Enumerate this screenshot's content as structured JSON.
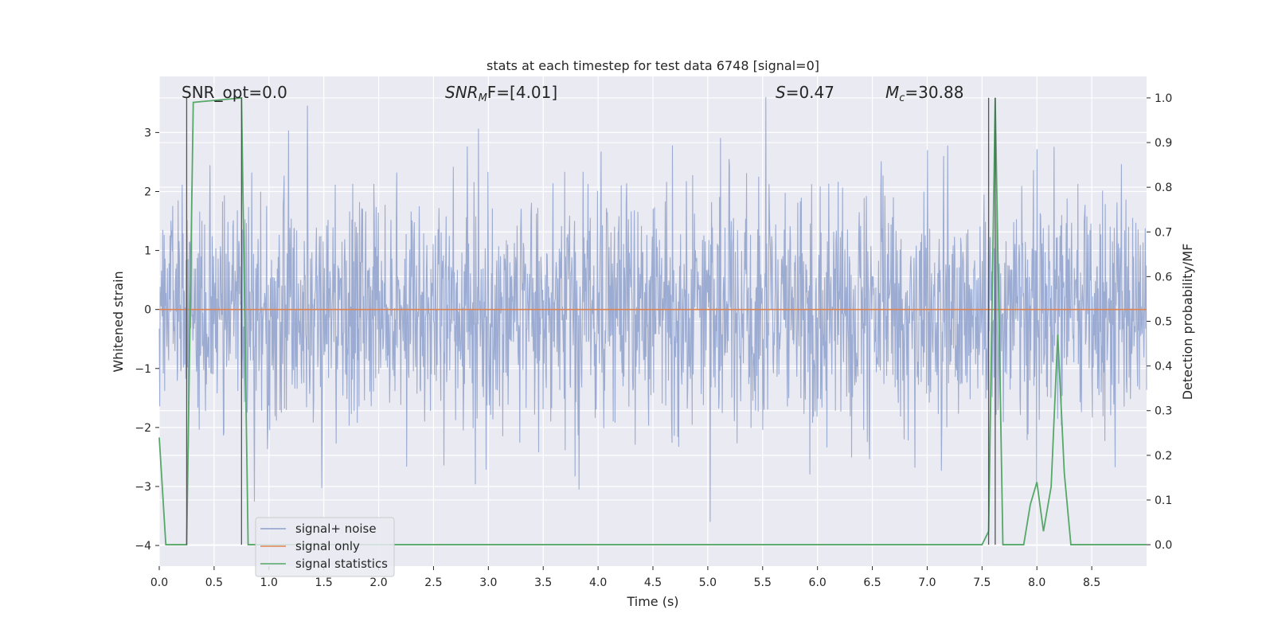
{
  "chart_data": {
    "type": "line",
    "title": "stats at each timestep for test data 6748 [signal=0]",
    "xlabel": "Time (s)",
    "ylabel_left": "Whitened strain",
    "ylabel_right": "Detection probability/MF",
    "xlim": [
      0.0,
      9.0
    ],
    "ylim_left": [
      -4.35,
      3.95
    ],
    "ylim_right": [
      -0.048,
      1.048
    ],
    "grid": true,
    "legend_position": "lower-left",
    "x_ticks": [
      "0.0",
      "0.5",
      "1.0",
      "1.5",
      "2.0",
      "2.5",
      "3.0",
      "3.5",
      "4.0",
      "4.5",
      "5.0",
      "5.5",
      "6.0",
      "6.5",
      "7.0",
      "7.5",
      "8.0",
      "8.5"
    ],
    "x_tick_values": [
      0.0,
      0.5,
      1.0,
      1.5,
      2.0,
      2.5,
      3.0,
      3.5,
      4.0,
      4.5,
      5.0,
      5.5,
      6.0,
      6.5,
      7.0,
      7.5,
      8.0,
      8.5
    ],
    "y_ticks_left": [
      "3",
      "2",
      "1",
      "0",
      "−1",
      "−2",
      "−3",
      "−4"
    ],
    "y_tick_values_left": [
      3,
      2,
      1,
      0,
      -1,
      -2,
      -3,
      -4
    ],
    "y_ticks_right": [
      "1.0",
      "0.9",
      "0.8",
      "0.7",
      "0.6",
      "0.5",
      "0.4",
      "0.3",
      "0.2",
      "0.1",
      "0.0"
    ],
    "y_tick_values_right": [
      1.0,
      0.9,
      0.8,
      0.7,
      0.6,
      0.5,
      0.4,
      0.3,
      0.2,
      0.1,
      0.0
    ],
    "annotations": {
      "snr_opt": "SNR_opt=0.0",
      "snr_mf_base": "SNR",
      "snr_mf_sub": "M",
      "snr_mf_rest": "F=[4.01]",
      "s_symbol": "S",
      "s_value": "=0.47",
      "mc_symbol": "M",
      "mc_sub": "c",
      "mc_value": "=30.88"
    },
    "series": [
      {
        "name": "signal+ noise",
        "color": "#8da0cb",
        "axis": "left",
        "description_values": {
          "typical_range": [
            -1.8,
            1.8
          ],
          "max": 3.6,
          "min": -4.0
        }
      },
      {
        "name": "signal only",
        "color": "#dd8452",
        "axis": "left",
        "x": [
          0.0,
          9.0
        ],
        "values": [
          0.0,
          0.0
        ]
      },
      {
        "name": "signal statistics",
        "color": "#55a868",
        "axis": "right",
        "x": [
          0.0,
          0.06,
          0.25,
          0.31,
          0.75,
          0.81,
          1.0,
          2.0,
          3.0,
          4.0,
          5.0,
          6.0,
          7.0,
          7.5,
          7.56,
          7.62,
          7.69,
          7.75,
          7.81,
          7.88,
          7.94,
          8.0,
          8.06,
          8.13,
          8.19,
          8.25,
          8.31,
          8.38,
          8.5,
          9.0
        ],
        "values": [
          0.24,
          0.0,
          0.0,
          0.99,
          1.0,
          0.0,
          0.0,
          0.0,
          0.0,
          0.0,
          0.0,
          0.0,
          0.0,
          0.0,
          0.03,
          1.0,
          0.0,
          0.0,
          0.0,
          0.0,
          0.09,
          0.14,
          0.03,
          0.13,
          0.47,
          0.16,
          0.0,
          0.0,
          0.0,
          0.0
        ]
      }
    ],
    "vertical_markers": [
      0.25,
      0.75,
      7.56,
      7.62
    ]
  }
}
